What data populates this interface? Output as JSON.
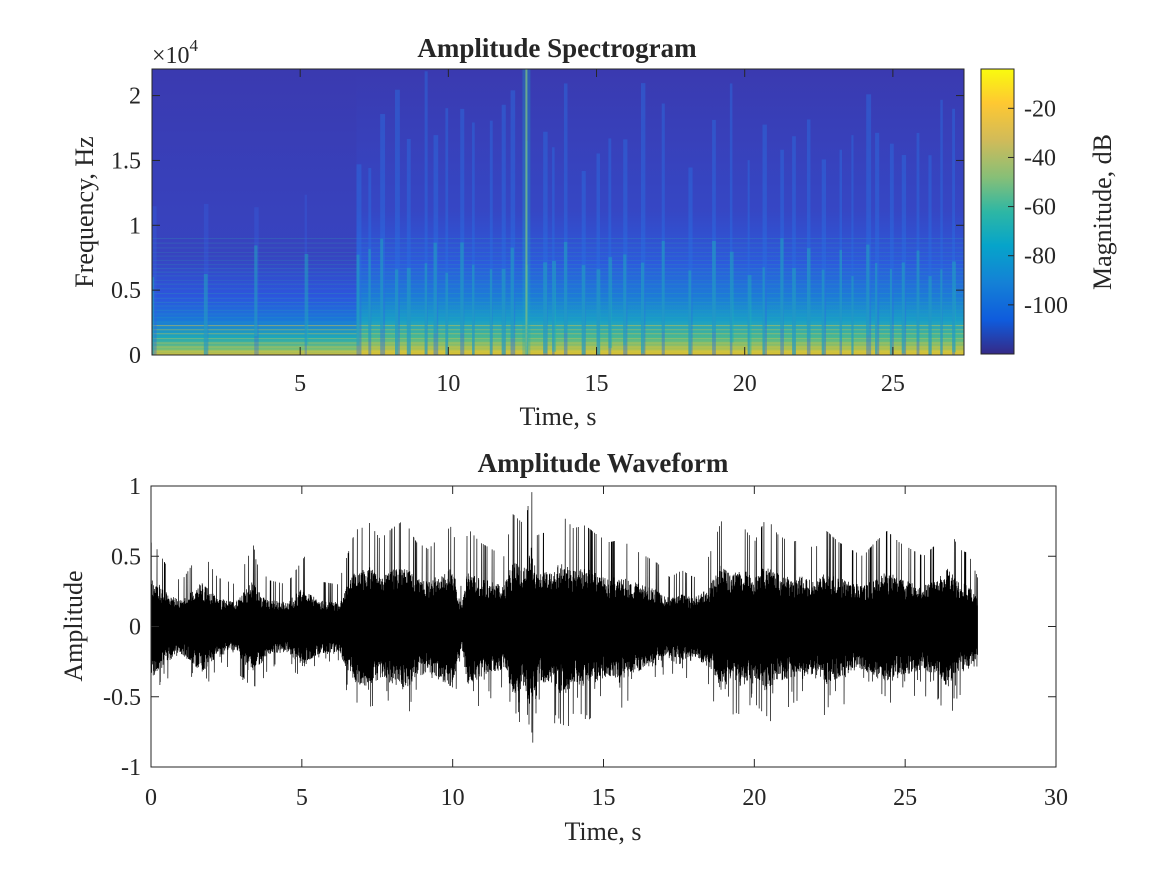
{
  "chart_data": [
    {
      "type": "heatmap",
      "title": "Amplitude Spectrogram",
      "xlabel": "Time, s",
      "ylabel": "Frequency, Hz",
      "xlim": [
        0,
        27.4
      ],
      "ylim": [
        0,
        22050
      ],
      "x_ticks": [
        5,
        10,
        15,
        20,
        25
      ],
      "y_ticks": [
        0,
        0.5,
        1,
        1.5,
        2
      ],
      "y_tick_labels": [
        "0",
        "0.5",
        "1",
        "1.5",
        "2"
      ],
      "y_multiplier": "×10",
      "y_multiplier_exponent": "4",
      "colorbar": {
        "label": "Magnitude, dB",
        "range": [
          -120,
          -4
        ],
        "ticks": [
          -20,
          -40,
          -60,
          -80,
          -100
        ],
        "tick_labels": [
          "-20",
          "-40",
          "-60",
          "-80",
          "-100"
        ],
        "colormap": "parula"
      },
      "onsets_s": [
        0,
        1.75,
        3.45,
        5.15,
        6.9,
        7.3,
        7.7,
        8.2,
        8.6,
        9.2,
        9.5,
        9.9,
        10.4,
        10.8,
        11.4,
        11.8,
        12.1,
        12.6,
        13.2,
        13.5,
        13.9,
        14.5,
        15.0,
        15.4,
        15.9,
        16.5,
        17.2,
        18.1,
        18.9,
        19.5,
        20.1,
        20.6,
        21.2,
        21.6,
        22.1,
        22.6,
        23.2,
        23.6,
        24.1,
        24.4,
        24.9,
        25.3,
        25.8,
        26.2,
        26.6,
        27.0
      ]
    },
    {
      "type": "line",
      "title": "Amplitude Waveform",
      "xlabel": "Time, s",
      "ylabel": "Amplitude",
      "xlim": [
        0,
        30
      ],
      "ylim": [
        -1,
        1
      ],
      "x_ticks": [
        0,
        5,
        10,
        15,
        20,
        25,
        30
      ],
      "y_ticks": [
        -1,
        -0.5,
        0,
        0.5,
        1
      ],
      "y_tick_labels": [
        "-1",
        "-0.5",
        "0",
        "0.5",
        "1"
      ],
      "color": "#000000",
      "duration_s": 27.4,
      "envelope": {
        "t": [
          0,
          0.2,
          0.6,
          1.0,
          1.7,
          1.8,
          2.2,
          2.8,
          3.4,
          3.5,
          3.9,
          4.5,
          5.1,
          5.2,
          5.6,
          6.2,
          6.8,
          6.9,
          7.2,
          7.6,
          8.0,
          8.4,
          8.8,
          9.2,
          9.6,
          10.0,
          10.3,
          10.5,
          10.9,
          11.3,
          11.7,
          12.0,
          12.4,
          12.6,
          12.8,
          13.2,
          13.6,
          14.0,
          14.4,
          14.8,
          15.2,
          15.6,
          16.0,
          16.4,
          16.8,
          17.2,
          17.6,
          18.0,
          18.5,
          18.9,
          19.2,
          19.6,
          20.0,
          20.4,
          20.8,
          21.2,
          21.6,
          22.0,
          22.4,
          22.8,
          23.2,
          23.6,
          24.0,
          24.4,
          24.8,
          25.2,
          25.6,
          26.0,
          26.4,
          26.8,
          27.1,
          27.4
        ],
        "peak": [
          0.6,
          0.55,
          0.4,
          0.32,
          0.55,
          0.5,
          0.35,
          0.3,
          0.58,
          0.45,
          0.33,
          0.3,
          0.5,
          0.42,
          0.32,
          0.3,
          0.7,
          0.68,
          0.75,
          0.62,
          0.7,
          0.76,
          0.6,
          0.55,
          0.65,
          0.72,
          0.25,
          0.7,
          0.6,
          0.55,
          0.5,
          0.8,
          0.72,
          1.0,
          0.65,
          0.68,
          0.8,
          0.7,
          0.72,
          0.65,
          0.6,
          0.62,
          0.55,
          0.5,
          0.45,
          0.35,
          0.4,
          0.35,
          0.5,
          0.75,
          0.65,
          0.72,
          0.6,
          0.78,
          0.65,
          0.6,
          0.62,
          0.55,
          0.68,
          0.6,
          0.55,
          0.5,
          0.6,
          0.68,
          0.6,
          0.55,
          0.5,
          0.58,
          0.72,
          0.55,
          0.52,
          0.35
        ]
      }
    }
  ]
}
